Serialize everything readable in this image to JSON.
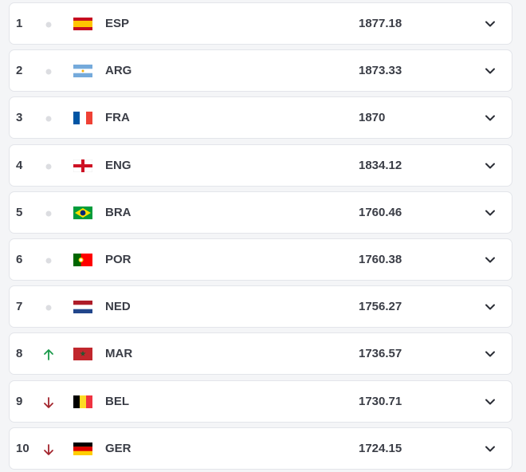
{
  "ranking": {
    "rows": [
      {
        "rank": 1,
        "team": "ESP",
        "points": 1877.18
      },
      {
        "rank": 2,
        "team": "ARG",
        "points": 1873.33
      },
      {
        "rank": 3,
        "team": "FRA",
        "points": 1870
      },
      {
        "rank": 4,
        "team": "ENG",
        "points": 1834.12
      },
      {
        "rank": 5,
        "team": "BRA",
        "points": 1760.46
      },
      {
        "rank": 6,
        "team": "POR",
        "points": 1760.38
      },
      {
        "rank": 7,
        "team": "NED",
        "points": 1756.27
      },
      {
        "rank": 8,
        "team": "MAR",
        "points": 1736.57
      },
      {
        "rank": 9,
        "team": "BEL",
        "points": 1730.71
      },
      {
        "rank": 10,
        "team": "GER",
        "points": 1724.15
      }
    ]
  }
}
